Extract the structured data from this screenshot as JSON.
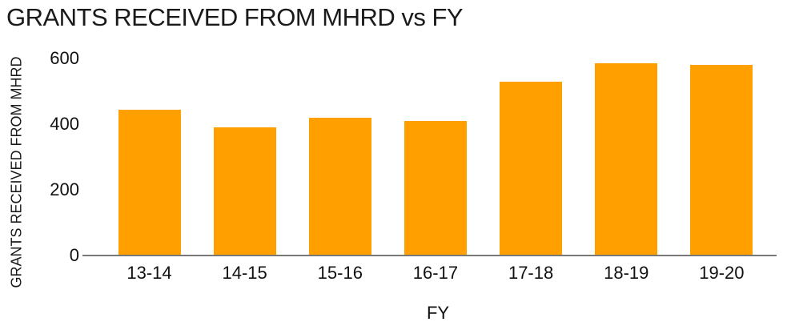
{
  "chart_data": {
    "type": "bar",
    "title": "GRANTS RECEIVED FROM MHRD vs FY",
    "xlabel": "FY",
    "ylabel": "GRANTS RECEIVED FROM MHRD",
    "categories": [
      "13-14",
      "14-15",
      "15-16",
      "16-17",
      "17-18",
      "18-19",
      "19-20"
    ],
    "values": [
      445,
      390,
      420,
      410,
      530,
      585,
      580
    ],
    "yticks": [
      0,
      200,
      400,
      600
    ],
    "ylim": [
      0,
      600
    ],
    "grid": false,
    "legend": "none",
    "bar_color": "#FFA000",
    "axis_line_color": "#787878",
    "text_color": "#1a1a1a",
    "background_color": "#FFFFFF"
  }
}
